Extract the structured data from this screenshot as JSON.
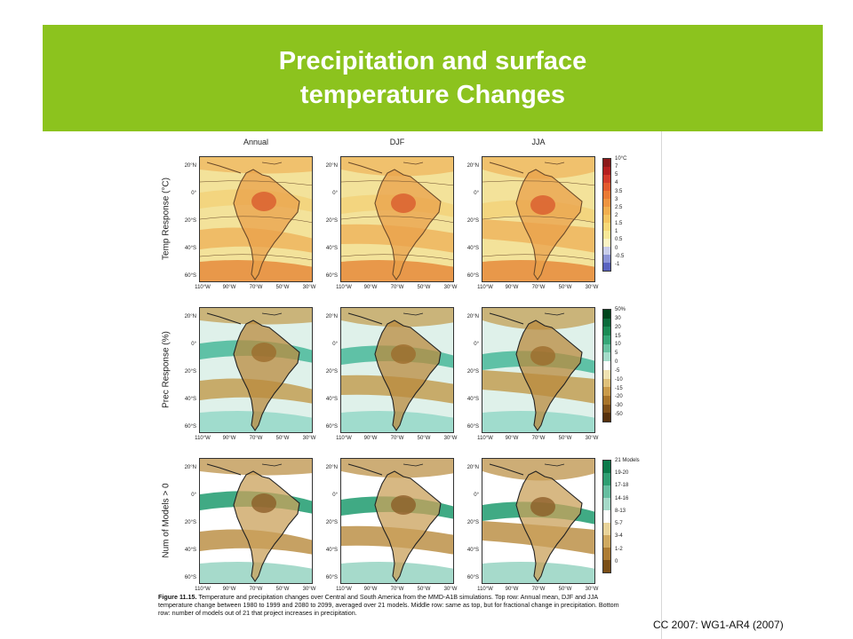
{
  "slide": {
    "title_line1": "Precipitation and surface",
    "title_line2": "temperature Changes",
    "citation": "CC 2007: WG1-AR4 (2007)",
    "accent_color": "#8cc31e"
  },
  "figure": {
    "columns": [
      "Annual",
      "DJF",
      "JJA"
    ],
    "rows": [
      "Temp Response (°C)",
      "Prec Response (%)",
      "Num of Models > 0"
    ],
    "lat_ticks": [
      "20°N",
      "0°",
      "20°S",
      "40°S",
      "60°S"
    ],
    "lon_ticks": [
      "110°W",
      "90°W",
      "70°W",
      "50°W",
      "30°W"
    ],
    "legend_temp": [
      "10°C",
      "7",
      "5",
      "4",
      "3.5",
      "3",
      "2.5",
      "2",
      "1.5",
      "1",
      "0.5",
      "0",
      "-0.5",
      "-1"
    ],
    "legend_prec": [
      "50%",
      "30",
      "20",
      "15",
      "10",
      "5",
      "0",
      "-5",
      "-10",
      "-15",
      "-20",
      "-30",
      "-50"
    ],
    "legend_models": [
      "21 Models",
      "19-20",
      "17-18",
      "14-16",
      "8-13",
      "5-7",
      "3-4",
      "1-2",
      "0"
    ],
    "caption_label": "Figure 11.15.",
    "caption_text": "Temperature and precipitation changes over Central and South America from the MMD-A1B simulations. Top row: Annual mean, DJF and JJA temperature change between 1980 to 1999 and 2080 to 2099, averaged over 21 models. Middle row: same as top, but for fractional change in precipitation. Bottom row: number of models out of 21 that project increases in precipitation."
  }
}
